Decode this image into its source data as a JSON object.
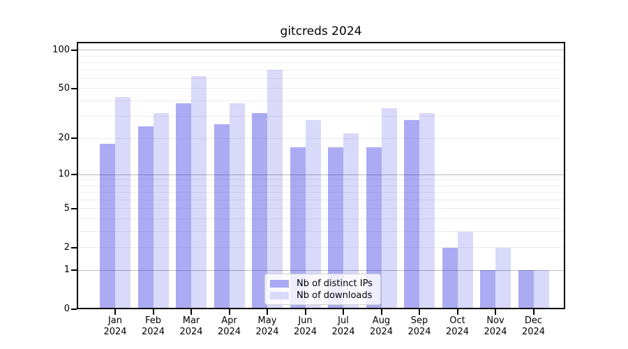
{
  "chart_data": {
    "type": "bar",
    "title": "gitcreds 2024",
    "year": "2024",
    "categories": [
      "Jan",
      "Feb",
      "Mar",
      "Apr",
      "May",
      "Jun",
      "Jul",
      "Aug",
      "Sep",
      "Oct",
      "Nov",
      "Dec"
    ],
    "series": [
      {
        "name": "Nb of distinct IPs",
        "key": "distinct-ips",
        "color": "#a8a8f4",
        "bar_color": "rgba(45,45,225,0.40)",
        "values": [
          18,
          25,
          38,
          26,
          32,
          17,
          17,
          17,
          28,
          2,
          1,
          1
        ]
      },
      {
        "name": "Nb of downloads",
        "key": "downloads",
        "color": "#d9d9f9",
        "bar_color": "rgba(45,45,225,0.18)",
        "values": [
          43,
          32,
          63,
          38,
          70,
          28,
          22,
          35,
          32,
          3,
          2,
          1
        ]
      }
    ],
    "y_axis": {
      "scale": "log1p",
      "tick_labels": [
        "100",
        "50",
        "20",
        "10",
        "5",
        "2",
        "1",
        "0"
      ],
      "tick_values": [
        100,
        50,
        20,
        10,
        5,
        2,
        1,
        0
      ],
      "major_gridlines": [
        1,
        10,
        100
      ],
      "minor_gridlines": [
        2,
        3,
        4,
        5,
        6,
        7,
        8,
        9,
        20,
        30,
        40,
        50,
        60,
        70,
        80,
        90
      ],
      "grid_major_color": "#b8b8b8",
      "grid_minor_color": "#ececec",
      "ylim": [
        0,
        116
      ]
    },
    "xlabel": "",
    "ylabel": "",
    "legend_position": "bottom-center"
  }
}
